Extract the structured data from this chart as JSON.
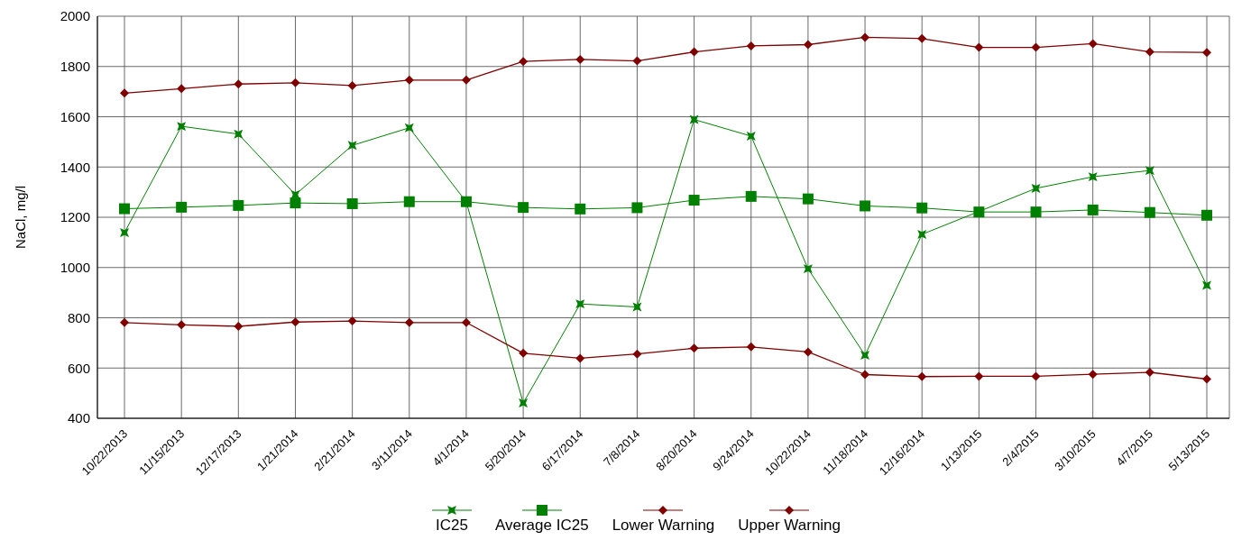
{
  "chart_data": {
    "type": "line",
    "ylabel": "NaCl, mg/l",
    "categories": [
      "10/22/2013",
      "11/15/2013",
      "12/17/2013",
      "1/21/2014",
      "2/21/2014",
      "3/11/2014",
      "4/1/2014",
      "5/20/2014",
      "6/17/2014",
      "7/8/2014",
      "8/20/2014",
      "9/24/2014",
      "10/22/2014",
      "11/18/2014",
      "12/16/2014",
      "1/13/2015",
      "2/4/2015",
      "3/10/2015",
      "4/7/2015",
      "5/13/2015"
    ],
    "ylim": [
      400,
      2000
    ],
    "yticks": [
      400,
      600,
      800,
      1000,
      1200,
      1400,
      1600,
      1800,
      2000
    ],
    "grid": true,
    "legend": "bottom",
    "series": [
      {
        "name": "IC25",
        "color": "#008000",
        "marker": "star",
        "values": [
          1139,
          1562,
          1531,
          1290,
          1486,
          1556,
          1261,
          461,
          855,
          843,
          1589,
          1523,
          995,
          651,
          1132,
          1223,
          1315,
          1361,
          1386,
          929
        ]
      },
      {
        "name": "Average IC25",
        "color": "#008000",
        "marker": "square",
        "values": [
          1234,
          1240,
          1247,
          1257,
          1254,
          1262,
          1262,
          1239,
          1233,
          1238,
          1268,
          1283,
          1273,
          1245,
          1237,
          1221,
          1221,
          1229,
          1219,
          1208
        ]
      },
      {
        "name": "Lower Warning",
        "color": "#800000",
        "marker": "diamond",
        "values": [
          781,
          772,
          766,
          783,
          787,
          781,
          781,
          659,
          639,
          656,
          679,
          684,
          664,
          574,
          566,
          567,
          567,
          575,
          583,
          556
        ]
      },
      {
        "name": "Upper Warning",
        "color": "#800000",
        "marker": "diamond",
        "values": [
          1694,
          1712,
          1730,
          1735,
          1724,
          1746,
          1746,
          1820,
          1828,
          1822,
          1858,
          1882,
          1887,
          1916,
          1911,
          1876,
          1876,
          1891,
          1858,
          1856
        ]
      }
    ]
  }
}
